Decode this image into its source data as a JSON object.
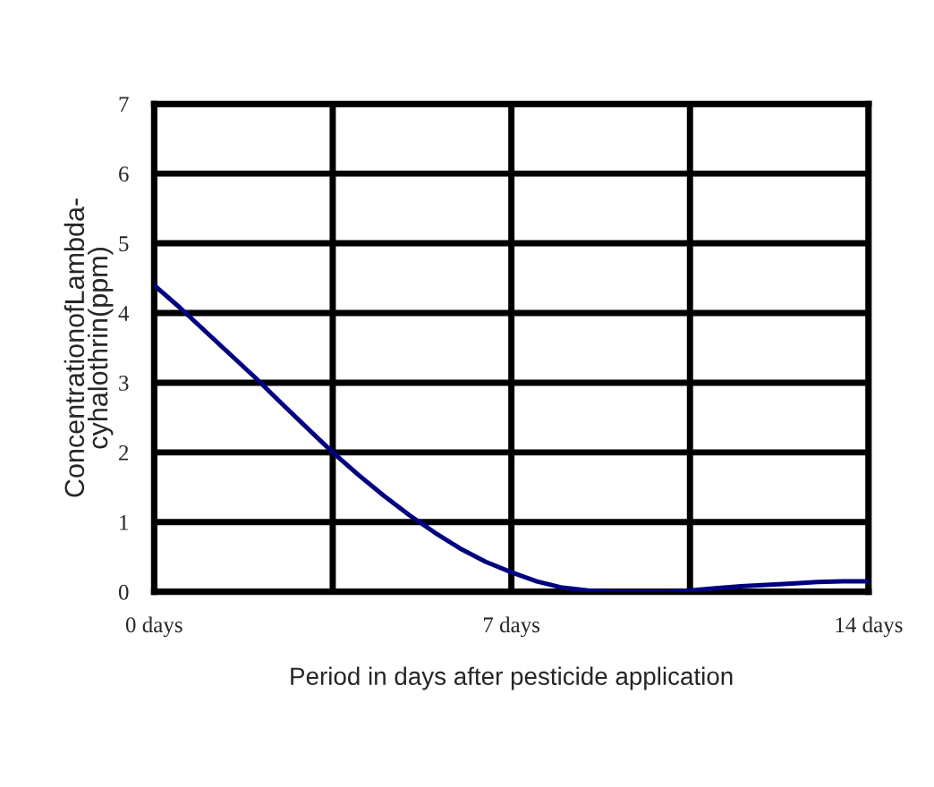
{
  "chart_data": {
    "type": "line",
    "xlabel": "Period in days after pesticide application",
    "ylabel": "ConcentrationofLambda-\ncyhalothrin(ppm)",
    "x": [
      0,
      0.5,
      1,
      1.5,
      2,
      2.5,
      3,
      3.5,
      4,
      4.5,
      5,
      5.5,
      6,
      6.5,
      7,
      7.5,
      8,
      8.5,
      9,
      9.5,
      10,
      10.5,
      11,
      11.5,
      12,
      12.5,
      13,
      13.5,
      14
    ],
    "series": [
      {
        "color": "#000080",
        "values": [
          4.4,
          4.08,
          3.74,
          3.4,
          3.06,
          2.7,
          2.35,
          2.0,
          1.68,
          1.38,
          1.1,
          0.85,
          0.62,
          0.43,
          0.28,
          0.15,
          0.06,
          0.02,
          0,
          0,
          0,
          0.02,
          0.05,
          0.08,
          0.1,
          0.12,
          0.14,
          0.15,
          0.15
        ]
      }
    ],
    "xlim": [
      0,
      14
    ],
    "ylim": [
      0,
      7
    ],
    "xticks": [
      {
        "value": 0,
        "label": "0 days"
      },
      {
        "value": 3.5,
        "label": null
      },
      {
        "value": 7,
        "label": "7 days"
      },
      {
        "value": 10.5,
        "label": null
      },
      {
        "value": 14,
        "label": "14 days"
      }
    ],
    "yticks": [
      0,
      1,
      2,
      3,
      4,
      5,
      6,
      7
    ],
    "grid": true,
    "marker": "none",
    "line_style": "solid"
  }
}
